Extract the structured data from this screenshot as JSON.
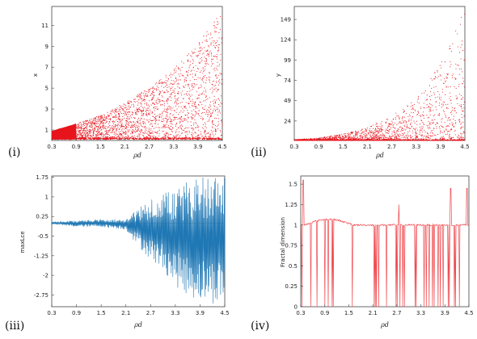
{
  "panels": [
    {
      "id": "i",
      "label": "(i)",
      "xlabel": "ρd",
      "ylabel": "x"
    },
    {
      "id": "ii",
      "label": "(ii)",
      "xlabel": "ρd",
      "ylabel": "y"
    },
    {
      "id": "iii",
      "label": "(iii)",
      "xlabel": "ρd",
      "ylabel": "maxLce"
    },
    {
      "id": "iv",
      "label": "(iv)",
      "xlabel": "ρd",
      "ylabel": "Fractal dimension"
    }
  ],
  "chart_data": [
    {
      "type": "scatter",
      "title": "",
      "xlabel": "ρd",
      "ylabel": "x",
      "xlim": [
        0.3,
        4.5
      ],
      "ylim": [
        0,
        12.8
      ],
      "xticks": [
        "0.3",
        "0.9",
        "1.5",
        "2.1",
        "2.7",
        "3.3",
        "3.9",
        "4.5"
      ],
      "yticks": [
        "1",
        "3",
        "5",
        "7",
        "9",
        "11"
      ],
      "color": "#e8141c",
      "envelope": {
        "x": [
          0.3,
          0.9,
          1.5,
          2.1,
          2.7,
          3.3,
          3.9,
          4.5
        ],
        "upper": [
          0.9,
          1.6,
          2.4,
          3.6,
          5.0,
          6.8,
          9.2,
          12.6
        ],
        "lower": [
          0.1,
          0.1,
          0.1,
          0.1,
          0.1,
          0.1,
          0.1,
          0.1
        ]
      },
      "grid": false
    },
    {
      "type": "scatter",
      "title": "",
      "xlabel": "ρd",
      "ylabel": "y",
      "xlim": [
        0.3,
        4.5
      ],
      "ylim": [
        0,
        165
      ],
      "xticks": [
        "0.3",
        "0.9",
        "1.5",
        "2.1",
        "2.7",
        "3.3",
        "3.9",
        "4.5"
      ],
      "yticks": [
        "24",
        "49",
        "74",
        "99",
        "124",
        "149"
      ],
      "color": "#e8141c",
      "envelope": {
        "x": [
          0.3,
          0.9,
          1.5,
          2.1,
          2.7,
          3.3,
          3.9,
          4.5
        ],
        "upper": [
          1,
          3,
          8,
          16,
          30,
          52,
          95,
          162
        ],
        "lower": [
          0,
          0,
          0,
          0,
          0,
          0,
          0,
          0
        ]
      },
      "grid": false
    },
    {
      "type": "line",
      "title": "",
      "xlabel": "ρd",
      "ylabel": "maxLce",
      "xlim": [
        0.3,
        4.5
      ],
      "ylim": [
        -3.2,
        1.8
      ],
      "xticks": [
        "0.3",
        "0.9",
        "1.5",
        "2.1",
        "2.7",
        "3.3",
        "3.9",
        "4.5"
      ],
      "yticks": [
        "1.75",
        "1",
        "0.25",
        "-0.5",
        "-1.25",
        "-2",
        "-2.75"
      ],
      "reference_line": 0,
      "color": "#1f77b4",
      "envelope": {
        "x": [
          0.3,
          0.9,
          1.5,
          2.1,
          2.4,
          2.7,
          3.0,
          3.3,
          3.6,
          3.9,
          4.2,
          4.5
        ],
        "upper": [
          0.05,
          0.1,
          0.15,
          0.15,
          0.6,
          0.9,
          1.1,
          1.4,
          1.6,
          1.75,
          1.8,
          1.75
        ],
        "lower": [
          -0.05,
          -0.15,
          -0.15,
          -0.25,
          -0.9,
          -1.4,
          -1.8,
          -2.4,
          -2.8,
          -3.0,
          -3.1,
          -3.0
        ]
      },
      "grid": false
    },
    {
      "type": "line",
      "title": "",
      "xlabel": "ρd",
      "ylabel": "Fractal dimension",
      "xlim": [
        0.3,
        4.5
      ],
      "ylim": [
        0,
        1.6
      ],
      "xticks": [
        "0.3",
        "0.9",
        "1.5",
        "2.1",
        "2.7",
        "3.3",
        "3.9",
        "4.5"
      ],
      "yticks": [
        "0",
        "0.25",
        "0.5",
        "0.75",
        "1",
        "1.25",
        "1.5"
      ],
      "color": "#ee4a4f",
      "baseline_value": 1.0,
      "hump": {
        "x": [
          0.4,
          1.6
        ],
        "peak": 1.07
      },
      "grid": false
    }
  ]
}
